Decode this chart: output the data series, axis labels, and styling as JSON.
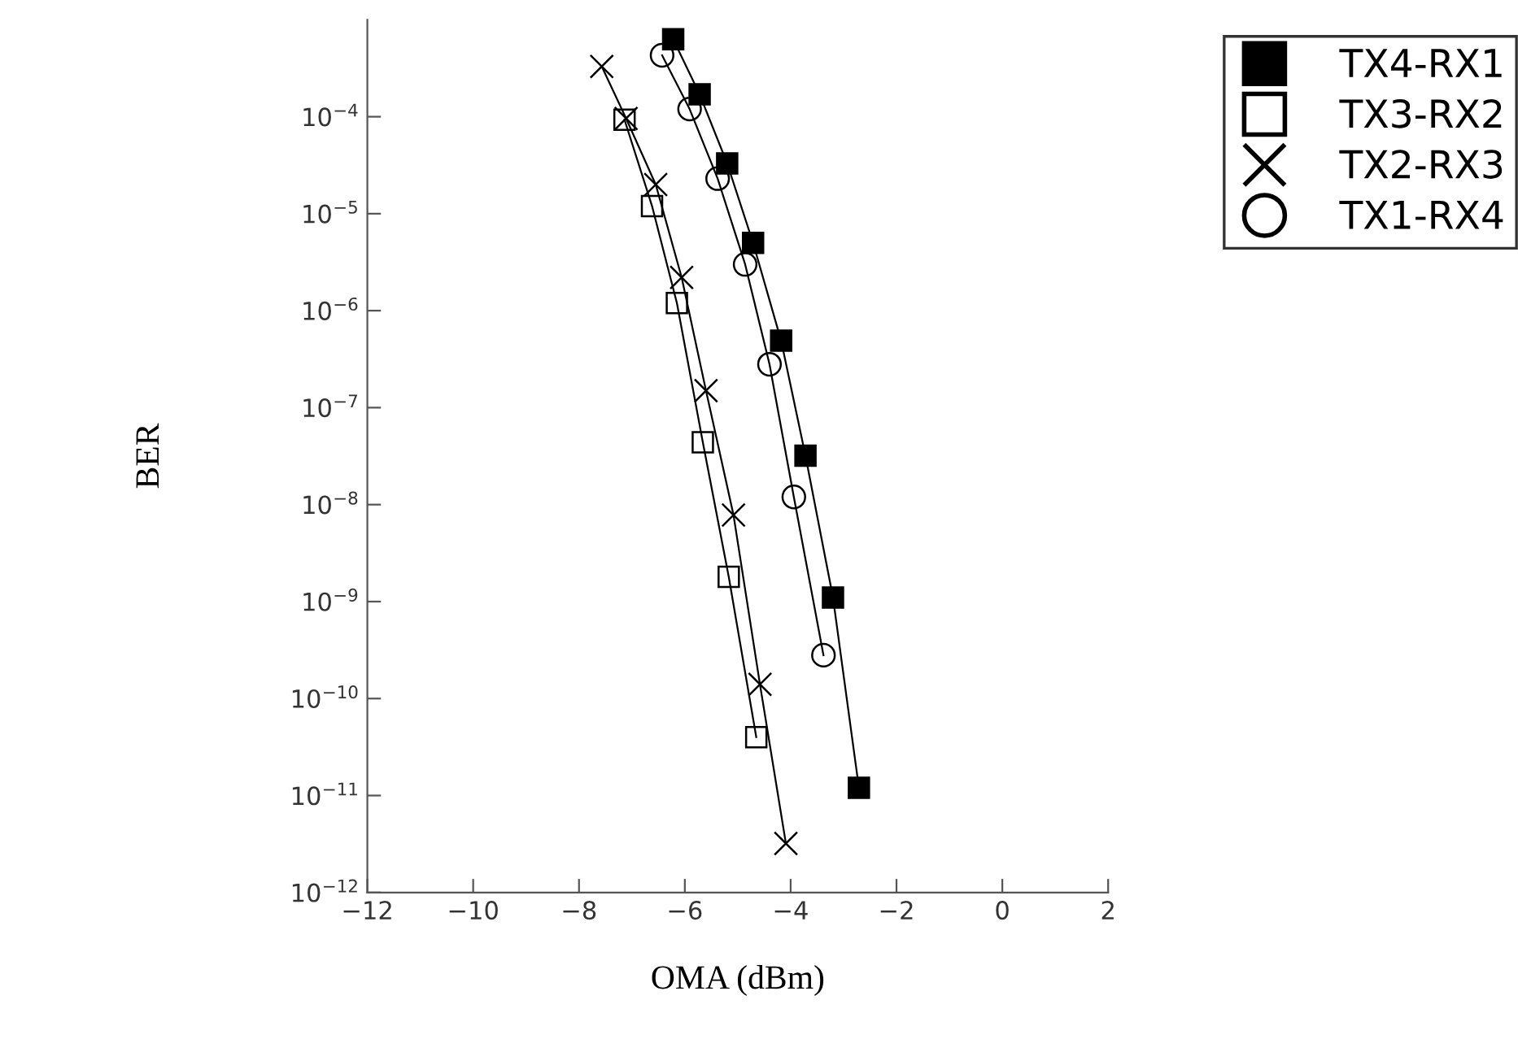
{
  "chart_data": {
    "type": "line",
    "xlabel": "OMA (dBm)",
    "ylabel": "BER",
    "log": true,
    "xlim": [
      -12,
      2
    ],
    "xticks": [
      {
        "value": -12,
        "label": "−12"
      },
      {
        "value": -10,
        "label": "−10"
      },
      {
        "value": -8,
        "label": "−8"
      },
      {
        "value": -6,
        "label": "−6"
      },
      {
        "value": -4,
        "label": "−4"
      },
      {
        "value": -2,
        "label": "−2"
      },
      0,
      2
    ],
    "ylim": [
      1e-12,
      0.001
    ],
    "yticks": [
      {
        "value": 0.0001,
        "label": "10$^{−4}$"
      },
      {
        "value": 1e-05,
        "label": "10$^{−5}$"
      },
      {
        "value": 1e-06,
        "label": "10$^{−6}$"
      },
      {
        "value": 1e-07,
        "label": "10$^{−7}$"
      },
      {
        "value": 1e-08,
        "label": "10$^{−8}$"
      },
      {
        "value": 1e-09,
        "label": "10$^{−9}$"
      },
      {
        "value": 1e-10,
        "label": "10$^{−10}$"
      },
      {
        "value": 1e-11,
        "label": "10$^{−11}$"
      },
      {
        "value": 1e-12,
        "label": "10$^{−12}$"
      }
    ],
    "grid": false,
    "legend": "top right",
    "line_style": "solid",
    "series": [
      {
        "name": "TX4-RX1",
        "color": "#000000",
        "marker": "square",
        "x": [
          -6.22,
          -5.72,
          -5.2,
          -4.71,
          -4.18,
          -3.72,
          -3.2,
          -2.71
        ],
        "values": [
          0.00063,
          0.00017,
          3.3e-05,
          5e-06,
          4.9e-07,
          3.2e-08,
          1.1e-09,
          1.2e-11
        ]
      },
      {
        "name": "TX3-RX2",
        "color": "#000000",
        "marker": "square",
        "x": [
          -7.14,
          -6.62,
          -6.15,
          -5.66,
          -5.17,
          -4.65
        ],
        "values": [
          9.3e-05,
          1.2e-05,
          1.2e-06,
          4.4e-08,
          1.8e-09,
          4e-11
        ]
      },
      {
        "name": "TX2-RX3",
        "color": "#000000",
        "marker": "cross",
        "x": [
          -7.57,
          -7.11,
          -6.55,
          -6.06,
          -5.6,
          -5.08,
          -4.58,
          -4.09
        ],
        "values": [
          0.00033,
          9.6e-05,
          2e-05,
          2.2e-06,
          1.5e-07,
          7.8e-09,
          1.4e-10,
          3.2e-12
        ]
      },
      {
        "name": "TX1-RX4",
        "color": "#000000",
        "marker": "circle",
        "x": [
          -6.43,
          -5.91,
          -5.38,
          -4.86,
          -4.4,
          -3.94,
          -3.38
        ],
        "values": [
          0.00043,
          0.00012,
          2.3e-05,
          3e-06,
          2.8e-07,
          1.2e-08,
          2.8e-10
        ]
      }
    ]
  }
}
